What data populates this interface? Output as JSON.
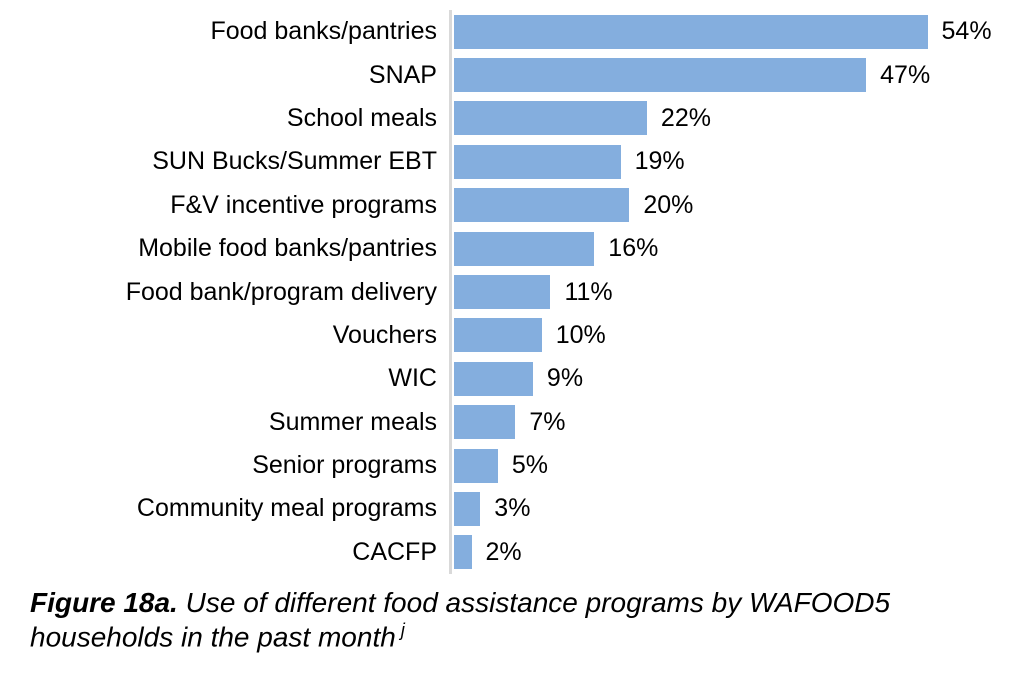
{
  "chart_data": {
    "type": "bar",
    "orientation": "horizontal",
    "title": "",
    "xlabel": "",
    "ylabel": "",
    "xlim": [
      0,
      65
    ],
    "grid": false,
    "legend": false,
    "bar_color": "#84aede",
    "axis_line_color": "#d9d9d9",
    "categories": [
      "Food banks/pantries",
      "SNAP",
      "School meals",
      "SUN Bucks/Summer EBT",
      "F&V incentive programs",
      "Mobile food banks/pantries",
      "Food bank/program delivery",
      "Vouchers",
      "WIC",
      "Summer meals",
      "Senior programs",
      "Community meal programs",
      "CACFP"
    ],
    "values": [
      54,
      47,
      22,
      19,
      20,
      16,
      11,
      10,
      9,
      7,
      5,
      3,
      2
    ],
    "value_labels": [
      "54%",
      "47%",
      "22%",
      "19%",
      "20%",
      "16%",
      "11%",
      "10%",
      "9%",
      "7%",
      "5%",
      "3%",
      "2%"
    ]
  },
  "caption": {
    "figure_label": "Figure 18a.",
    "body": " Use of different food assistance programs by WAFOOD5 households in the past month",
    "footnote_marker": "j"
  }
}
